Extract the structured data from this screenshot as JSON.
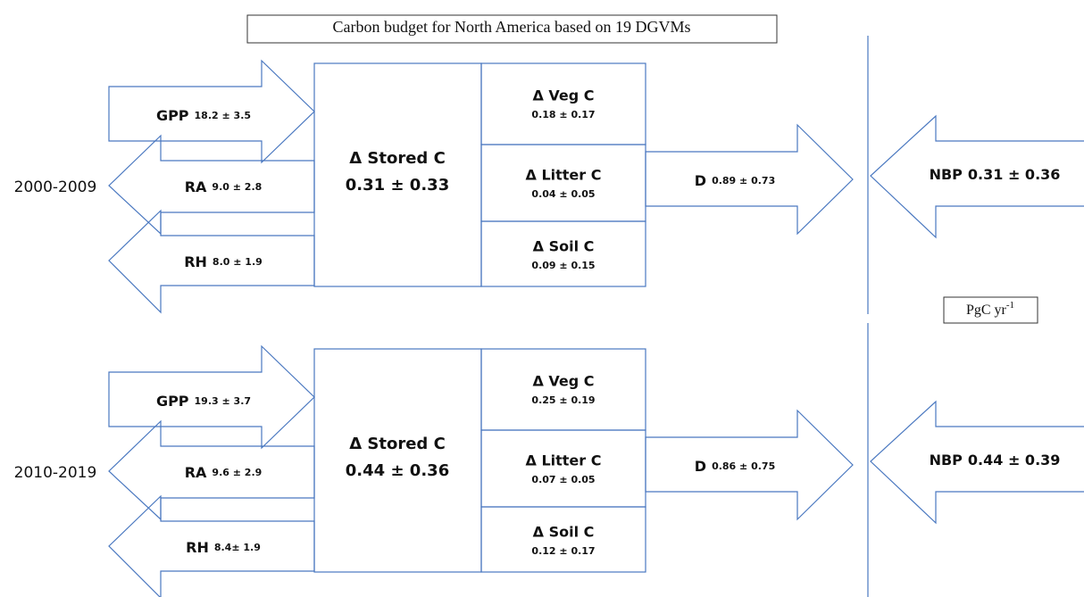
{
  "title": "Carbon budget for North America based on 19 DGVMs",
  "unit": {
    "base": "PgC yr",
    "exponent": "-1"
  },
  "periods": [
    {
      "label": "2000-2009",
      "gpp": {
        "name": "GPP",
        "value": "18.2 ± 3.5"
      },
      "ra": {
        "name": "RA",
        "value": "9.0 ± 2.8"
      },
      "rh": {
        "name": "RH",
        "value": "8.0 ± 1.9"
      },
      "stored": {
        "name": "Δ Stored C",
        "value": "0.31 ± 0.33"
      },
      "veg": {
        "name": "Δ Veg C",
        "value": "0.18 ± 0.17"
      },
      "litter": {
        "name": "Δ Litter C",
        "value": "0.04 ± 0.05"
      },
      "soil": {
        "name": "Δ Soil C",
        "value": "0.09 ± 0.15"
      },
      "d": {
        "name": "D",
        "value": "0.89 ± 0.73"
      },
      "nbp": {
        "name": "NBP",
        "value": "0.31 ± 0.36"
      }
    },
    {
      "label": "2010-2019",
      "gpp": {
        "name": "GPP",
        "value": "19.3 ± 3.7"
      },
      "ra": {
        "name": "RA",
        "value": "9.6 ± 2.9"
      },
      "rh": {
        "name": "RH",
        "value": "8.4± 1.9"
      },
      "stored": {
        "name": "Δ Stored C",
        "value": "0.44 ± 0.36"
      },
      "veg": {
        "name": "Δ Veg C",
        "value": "0.25 ± 0.19"
      },
      "litter": {
        "name": "Δ Litter C",
        "value": "0.07 ± 0.05"
      },
      "soil": {
        "name": "Δ Soil C",
        "value": "0.12 ± 0.17"
      },
      "d": {
        "name": "D",
        "value": "0.86 ± 0.75"
      },
      "nbp": {
        "name": "NBP",
        "value": "0.44 ± 0.39"
      }
    }
  ]
}
